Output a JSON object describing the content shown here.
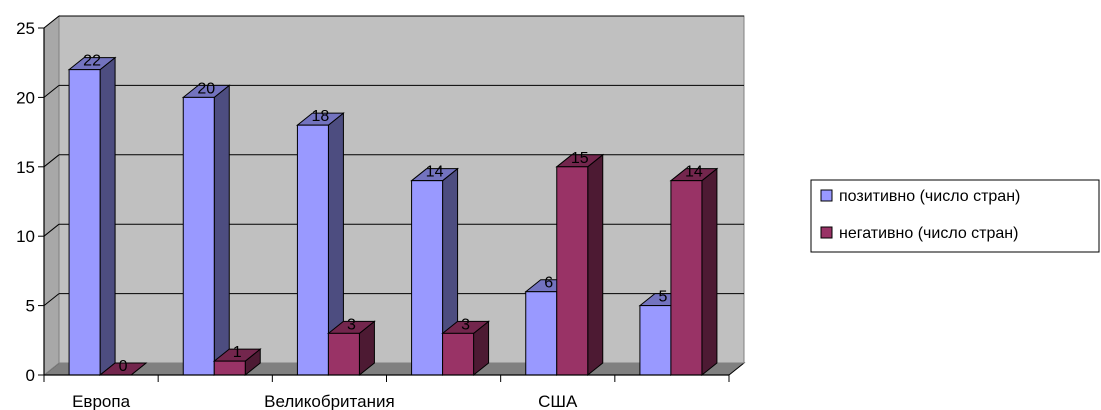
{
  "chart_data": {
    "type": "bar",
    "categories": [
      "Европа",
      "",
      "Великобритания",
      "",
      "США",
      ""
    ],
    "series": [
      {
        "name": "позитивно (число стран)",
        "values": [
          22,
          20,
          18,
          14,
          6,
          5
        ],
        "color": "#9999ff"
      },
      {
        "name": "негативно (число стран)",
        "values": [
          0,
          1,
          3,
          3,
          15,
          14
        ],
        "color": "#993366"
      }
    ],
    "ylim": [
      0,
      25
    ],
    "yticks": [
      "0",
      "5",
      "10",
      "15",
      "20",
      "25"
    ],
    "grid": true,
    "legend_position": "right",
    "style": "3d-clustered-column",
    "plot_background": "#c0c0c0"
  }
}
